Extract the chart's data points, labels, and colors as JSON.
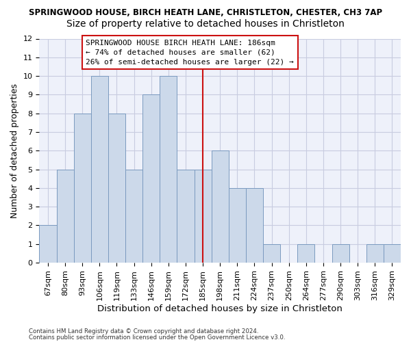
{
  "title": "SPRINGWOOD HOUSE, BIRCH HEATH LANE, CHRISTLETON, CHESTER, CH3 7AP",
  "subtitle": "Size of property relative to detached houses in Christleton",
  "xlabel": "Distribution of detached houses by size in Christleton",
  "ylabel": "Number of detached properties",
  "categories": [
    "67sqm",
    "80sqm",
    "93sqm",
    "106sqm",
    "119sqm",
    "133sqm",
    "146sqm",
    "159sqm",
    "172sqm",
    "185sqm",
    "198sqm",
    "211sqm",
    "224sqm",
    "237sqm",
    "250sqm",
    "264sqm",
    "277sqm",
    "290sqm",
    "303sqm",
    "316sqm",
    "329sqm"
  ],
  "values": [
    2,
    5,
    8,
    10,
    8,
    5,
    9,
    10,
    5,
    5,
    6,
    4,
    4,
    1,
    0,
    1,
    0,
    1,
    0,
    1,
    1
  ],
  "bar_color": "#ccd9ea",
  "bar_edge_color": "#7a9abf",
  "vline_index": 9,
  "vline_color": "#cc1111",
  "annotation_text": "SPRINGWOOD HOUSE BIRCH HEATH LANE: 186sqm\n← 74% of detached houses are smaller (62)\n26% of semi-detached houses are larger (22) →",
  "annotation_box_facecolor": "#ffffff",
  "annotation_box_edgecolor": "#cc1111",
  "ylim": [
    0,
    12
  ],
  "yticks": [
    0,
    1,
    2,
    3,
    4,
    5,
    6,
    7,
    8,
    9,
    10,
    11,
    12
  ],
  "footer1": "Contains HM Land Registry data © Crown copyright and database right 2024.",
  "footer2": "Contains public sector information licensed under the Open Government Licence v3.0.",
  "bg_color": "#eef1fa",
  "grid_color": "#c8cce0",
  "title_fontsize": 8.5,
  "subtitle_fontsize": 10,
  "xlabel_fontsize": 9.5,
  "ylabel_fontsize": 9,
  "tick_fontsize": 8,
  "annot_fontsize": 8,
  "footer_fontsize": 6.2
}
